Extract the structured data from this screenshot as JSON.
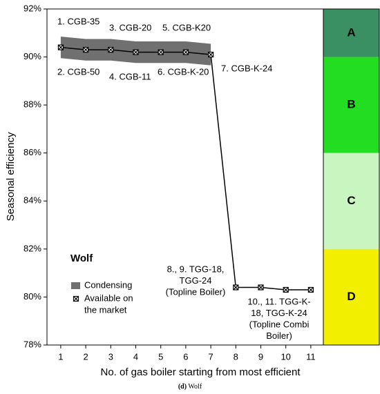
{
  "chart_data": {
    "type": "line",
    "x_label": "No. of gas boiler starting from most efficient",
    "y_label": "Seasonal efficiency",
    "x": [
      1,
      2,
      3,
      4,
      5,
      6,
      7,
      8,
      9,
      10,
      11
    ],
    "series": [
      {
        "name": [
          "Available on",
          "the market"
        ],
        "color": "#000000",
        "values": [
          90.4,
          90.3,
          90.3,
          90.2,
          90.2,
          90.2,
          90.1,
          80.4,
          80.4,
          80.3,
          80.3
        ]
      }
    ],
    "band": {
      "name": "Condensing",
      "color": "#707070",
      "upper": [
        90.85,
        90.75,
        90.75,
        90.65,
        90.65,
        90.65,
        90.55,
        null,
        null,
        null,
        null
      ],
      "lower": [
        89.95,
        89.85,
        89.85,
        89.75,
        89.75,
        89.75,
        89.65,
        null,
        null,
        null,
        null
      ]
    },
    "xlim": [
      0.45,
      11.5
    ],
    "xticks": [
      1,
      2,
      3,
      4,
      5,
      6,
      7,
      8,
      9,
      10,
      11
    ],
    "ylim": [
      78,
      92
    ],
    "yticks": [
      {
        "value": 78,
        "label": "78%"
      },
      {
        "value": 80,
        "label": "80%"
      },
      {
        "value": 82,
        "label": "82%"
      },
      {
        "value": 84,
        "label": "84%"
      },
      {
        "value": 86,
        "label": "86%"
      },
      {
        "value": 88,
        "label": "88%"
      },
      {
        "value": 90,
        "label": "90%"
      },
      {
        "value": 92,
        "label": "92%"
      }
    ],
    "zones": [
      {
        "label": "A",
        "from": 90,
        "to": 92,
        "color": "#3a8f63"
      },
      {
        "label": "B",
        "from": 86,
        "to": 90,
        "color": "#22dd22"
      },
      {
        "label": "C",
        "from": 82,
        "to": 86,
        "color": "#c8f5c0"
      },
      {
        "label": "D",
        "from": 78,
        "to": 82,
        "color": "#f2ef00"
      }
    ],
    "legend_title": "Wolf",
    "annotations": [
      [
        "1. CGB-35"
      ],
      [
        "3. CGB-20"
      ],
      [
        "5. CGB-K20"
      ],
      [
        "2. CGB-50"
      ],
      [
        "4. CGB-11"
      ],
      [
        "6. CGB-K-20"
      ],
      [
        "7. CGB-K-24"
      ],
      [
        "8., 9. TGG-18,",
        "TGG-24",
        "(Topline Boiler)"
      ],
      [
        "10., 11. TGG-K-",
        "18, TGG-K-24",
        "(Topline Combi",
        "Boiler)"
      ]
    ],
    "caption": {
      "label": "(d)",
      "text": "Wolf"
    }
  }
}
